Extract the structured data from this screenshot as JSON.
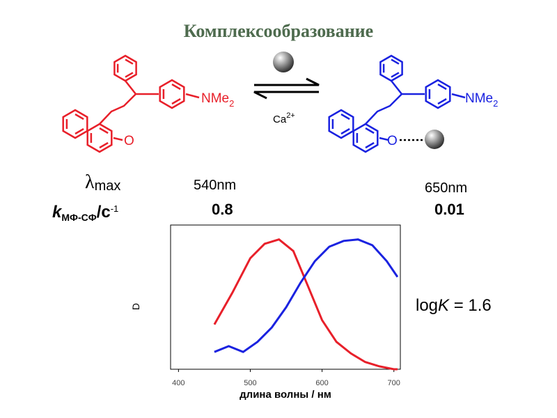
{
  "slide": {
    "title": "Комплексообразование",
    "left_molecule": {
      "amine": "NMe",
      "amine_subscript": "2",
      "oxygen": "O"
    },
    "right_molecule": {
      "amine": "NMe",
      "amine_subscript": "2",
      "oxygen": "O"
    },
    "reagent": {
      "ion": "Ca",
      "charge": "2+"
    },
    "lambda_label": {
      "symbol": "λ",
      "subscript": "max"
    },
    "rate_label": {
      "symbol": "k",
      "subscript": "МФ-СФ",
      "unit": "/c",
      "unit_power": "-1"
    },
    "left_lambda": "540nm",
    "right_lambda": "650nm",
    "left_rate": 0.8,
    "right_rate": 0.01,
    "binding": {
      "prefix": "log",
      "symbol": "K",
      "rest": " = 1.6"
    }
  },
  "chart_data": {
    "type": "line",
    "xlabel": "длина волны / нм",
    "ylabel": "D",
    "xlim": [
      389,
      709
    ],
    "xticks": [
      400,
      500,
      600,
      700
    ],
    "ylim": [
      0,
      1
    ],
    "series": [
      {
        "color": "#e8202a",
        "x": [
          450,
          475,
          500,
          520,
          540,
          560,
          580,
          600,
          620,
          640,
          660,
          680,
          700,
          705
        ],
        "values": [
          0.31,
          0.53,
          0.77,
          0.87,
          0.9,
          0.82,
          0.58,
          0.34,
          0.19,
          0.11,
          0.05,
          0.02,
          0.0,
          0.0
        ]
      },
      {
        "color": "#1a22e0",
        "x": [
          450,
          470,
          490,
          510,
          530,
          550,
          570,
          590,
          610,
          630,
          650,
          670,
          690,
          705
        ],
        "values": [
          0.12,
          0.16,
          0.12,
          0.19,
          0.29,
          0.43,
          0.6,
          0.75,
          0.85,
          0.89,
          0.9,
          0.86,
          0.75,
          0.64
        ]
      }
    ]
  }
}
